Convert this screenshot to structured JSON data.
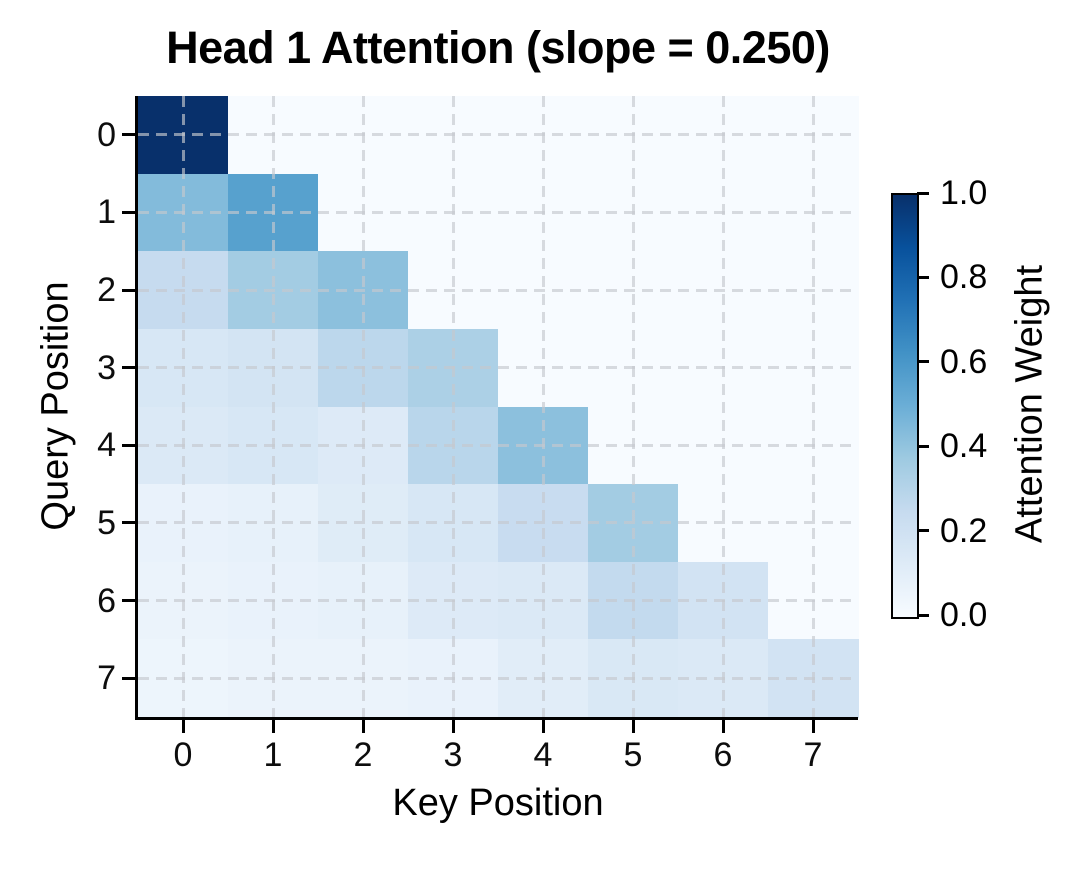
{
  "chart_data": {
    "type": "heatmap",
    "title": "Head 1 Attention (slope = 0.250)",
    "xlabel": "Key Position",
    "ylabel": "Query Position",
    "colorbar_label": "Attention Weight",
    "x_tick_labels": [
      "0",
      "1",
      "2",
      "3",
      "4",
      "5",
      "6",
      "7"
    ],
    "y_tick_labels": [
      "0",
      "1",
      "2",
      "3",
      "4",
      "5",
      "6",
      "7"
    ],
    "colorbar_tick_labels": [
      "0.0",
      "0.2",
      "0.4",
      "0.6",
      "0.8",
      "1.0"
    ],
    "colorbar_tick_values": [
      0.0,
      0.2,
      0.4,
      0.6,
      0.8,
      1.0
    ],
    "value_range": [
      0.0,
      1.0
    ],
    "colormap": "Blues",
    "colormap_anchors": [
      "#f7fbff",
      "#deebf7",
      "#c6dbef",
      "#9ecae1",
      "#6baed6",
      "#4292c6",
      "#2171b5",
      "#08519c",
      "#08306b"
    ],
    "grid": "dashed-on-top",
    "legend_position": "right-colorbar",
    "matrix": [
      [
        1.0,
        0.0,
        0.0,
        0.0,
        0.0,
        0.0,
        0.0,
        0.0
      ],
      [
        0.44,
        0.56,
        0.0,
        0.0,
        0.0,
        0.0,
        0.0,
        0.0
      ],
      [
        0.25,
        0.36,
        0.42,
        0.0,
        0.0,
        0.0,
        0.0,
        0.0
      ],
      [
        0.16,
        0.18,
        0.28,
        0.33,
        0.0,
        0.0,
        0.0,
        0.0
      ],
      [
        0.14,
        0.16,
        0.13,
        0.29,
        0.42,
        0.0,
        0.0,
        0.0
      ],
      [
        0.07,
        0.08,
        0.12,
        0.16,
        0.24,
        0.36,
        0.0,
        0.0
      ],
      [
        0.06,
        0.07,
        0.08,
        0.13,
        0.14,
        0.26,
        0.19,
        0.0
      ],
      [
        0.05,
        0.06,
        0.06,
        0.07,
        0.11,
        0.15,
        0.14,
        0.19
      ]
    ]
  },
  "colors": {
    "background": "#ffffff",
    "spine": "#000000",
    "grid": "rgba(197,200,206,0.66)",
    "text": "#000000",
    "heatmap_min": "#f7fbff",
    "heatmap_max": "#08306b"
  }
}
